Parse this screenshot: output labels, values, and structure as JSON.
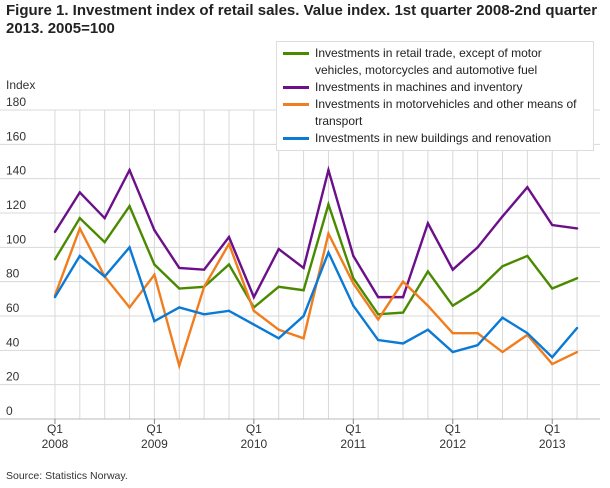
{
  "chart_data": {
    "type": "line",
    "title": "Figure 1. Investment index of retail sales. Value index. 1st quarter 2008-2nd quarter 2013. 2005=100",
    "ylabel": "Index",
    "ylim": [
      0,
      180
    ],
    "yticks": [
      0,
      20,
      40,
      60,
      80,
      100,
      120,
      140,
      160,
      180
    ],
    "grid": true,
    "legend_placement": "top-right",
    "x": [
      "2008Q1",
      "2008Q2",
      "2008Q3",
      "2008Q4",
      "2009Q1",
      "2009Q2",
      "2009Q3",
      "2009Q4",
      "2010Q1",
      "2010Q2",
      "2010Q3",
      "2010Q4",
      "2011Q1",
      "2011Q2",
      "2011Q3",
      "2011Q4",
      "2012Q1",
      "2012Q2",
      "2012Q3",
      "2012Q4",
      "2013Q1",
      "2013Q2"
    ],
    "xtick_labels": [
      {
        "q": "Q1",
        "y": "2008",
        "i": 0
      },
      {
        "q": "Q1",
        "y": "2009",
        "i": 4
      },
      {
        "q": "Q1",
        "y": "2010",
        "i": 8
      },
      {
        "q": "Q1",
        "y": "2011",
        "i": 12
      },
      {
        "q": "Q1",
        "y": "2012",
        "i": 16
      },
      {
        "q": "Q1",
        "y": "2013",
        "i": 20
      }
    ],
    "series": [
      {
        "name": "Investments in retail trade, except of motor vehicles, motorcycles and automotive fuel",
        "color": "#4a8a00",
        "values": [
          93,
          117,
          103,
          124,
          90,
          76,
          77,
          90,
          65,
          77,
          75,
          125,
          82,
          61,
          62,
          86,
          66,
          75,
          89,
          95,
          76,
          82
        ]
      },
      {
        "name": "Investments in machines and inventory",
        "color": "#6b0f8a",
        "values": [
          109,
          132,
          117,
          145,
          110,
          88,
          87,
          106,
          71,
          99,
          88,
          145,
          95,
          71,
          71,
          114,
          87,
          100,
          118,
          135,
          113,
          111
        ]
      },
      {
        "name": "Investments in motorvehicles and other means of transport",
        "color": "#f07d1e",
        "values": [
          72,
          111,
          83,
          65,
          84,
          31,
          77,
          102,
          63,
          52,
          47,
          108,
          79,
          58,
          80,
          66,
          50,
          50,
          39,
          49,
          32,
          39
        ]
      },
      {
        "name": "Investments in new buildings and renovation",
        "color": "#0a7ad4",
        "values": [
          71,
          95,
          83,
          100,
          57,
          65,
          61,
          63,
          55,
          47,
          60,
          97,
          66,
          46,
          44,
          52,
          39,
          43,
          59,
          50,
          36,
          53
        ]
      }
    ]
  },
  "source": "Source: Statistics Norway."
}
